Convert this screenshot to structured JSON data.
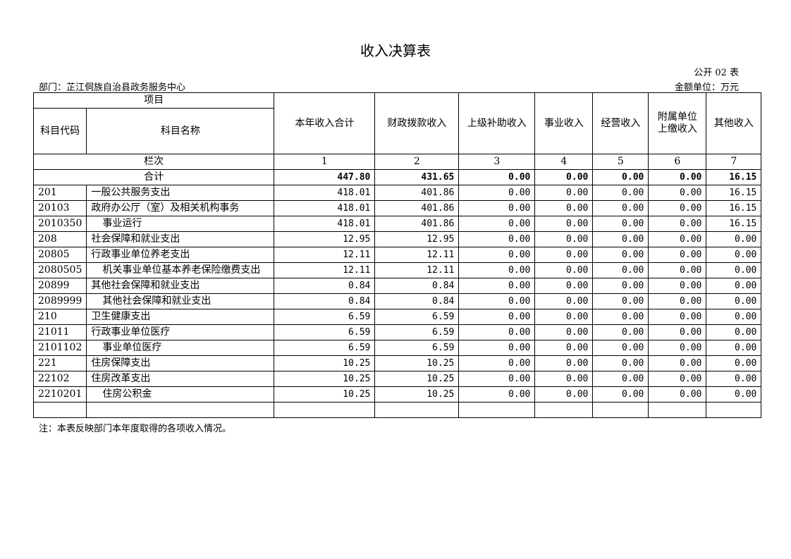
{
  "title": "收入决算表",
  "form_no": "公开 02 表",
  "department": "部门：芷江侗族自治县政务服务中心",
  "unit": "金额单位：万元",
  "table": {
    "header": {
      "project": "项目",
      "code": "科目代码",
      "name": "科目名称",
      "columns": [
        "本年收入合计",
        "财政拨款收入",
        "上级补助收入",
        "事业收入",
        "经营收入",
        "附属单位上缴收入",
        "其他收入"
      ]
    },
    "index_row": {
      "label": "栏次",
      "numbers": [
        "1",
        "2",
        "3",
        "4",
        "5",
        "6",
        "7"
      ]
    },
    "total_row": {
      "label": "合计",
      "values": [
        "447.80",
        "431.65",
        "0.00",
        "0.00",
        "0.00",
        "0.00",
        "16.15"
      ]
    },
    "rows": [
      {
        "code": "201",
        "name": "一般公共服务支出",
        "values": [
          "418.01",
          "401.86",
          "0.00",
          "0.00",
          "0.00",
          "0.00",
          "16.15"
        ]
      },
      {
        "code": "20103",
        "name": "政府办公厅（室）及相关机构事务",
        "values": [
          "418.01",
          "401.86",
          "0.00",
          "0.00",
          "0.00",
          "0.00",
          "16.15"
        ]
      },
      {
        "code": "2010350",
        "name": "事业运行",
        "values": [
          "418.01",
          "401.86",
          "0.00",
          "0.00",
          "0.00",
          "0.00",
          "16.15"
        ]
      },
      {
        "code": "208",
        "name": "社会保障和就业支出",
        "values": [
          "12.95",
          "12.95",
          "0.00",
          "0.00",
          "0.00",
          "0.00",
          "0.00"
        ]
      },
      {
        "code": "20805",
        "name": "行政事业单位养老支出",
        "values": [
          "12.11",
          "12.11",
          "0.00",
          "0.00",
          "0.00",
          "0.00",
          "0.00"
        ]
      },
      {
        "code": "2080505",
        "name": "机关事业单位基本养老保险缴费支出",
        "values": [
          "12.11",
          "12.11",
          "0.00",
          "0.00",
          "0.00",
          "0.00",
          "0.00"
        ]
      },
      {
        "code": "20899",
        "name": "其他社会保障和就业支出",
        "values": [
          "0.84",
          "0.84",
          "0.00",
          "0.00",
          "0.00",
          "0.00",
          "0.00"
        ]
      },
      {
        "code": "2089999",
        "name": "其他社会保障和就业支出",
        "values": [
          "0.84",
          "0.84",
          "0.00",
          "0.00",
          "0.00",
          "0.00",
          "0.00"
        ]
      },
      {
        "code": "210",
        "name": "卫生健康支出",
        "values": [
          "6.59",
          "6.59",
          "0.00",
          "0.00",
          "0.00",
          "0.00",
          "0.00"
        ]
      },
      {
        "code": "21011",
        "name": "行政事业单位医疗",
        "values": [
          "6.59",
          "6.59",
          "0.00",
          "0.00",
          "0.00",
          "0.00",
          "0.00"
        ]
      },
      {
        "code": "2101102",
        "name": "事业单位医疗",
        "values": [
          "6.59",
          "6.59",
          "0.00",
          "0.00",
          "0.00",
          "0.00",
          "0.00"
        ]
      },
      {
        "code": "221",
        "name": "住房保障支出",
        "values": [
          "10.25",
          "10.25",
          "0.00",
          "0.00",
          "0.00",
          "0.00",
          "0.00"
        ]
      },
      {
        "code": "22102",
        "name": "住房改革支出",
        "values": [
          "10.25",
          "10.25",
          "0.00",
          "0.00",
          "0.00",
          "0.00",
          "0.00"
        ]
      },
      {
        "code": "2210201",
        "name": "住房公积金",
        "values": [
          "10.25",
          "10.25",
          "0.00",
          "0.00",
          "0.00",
          "0.00",
          "0.00"
        ]
      }
    ]
  },
  "note": "注：本表反映部门本年度取得的各项收入情况。"
}
